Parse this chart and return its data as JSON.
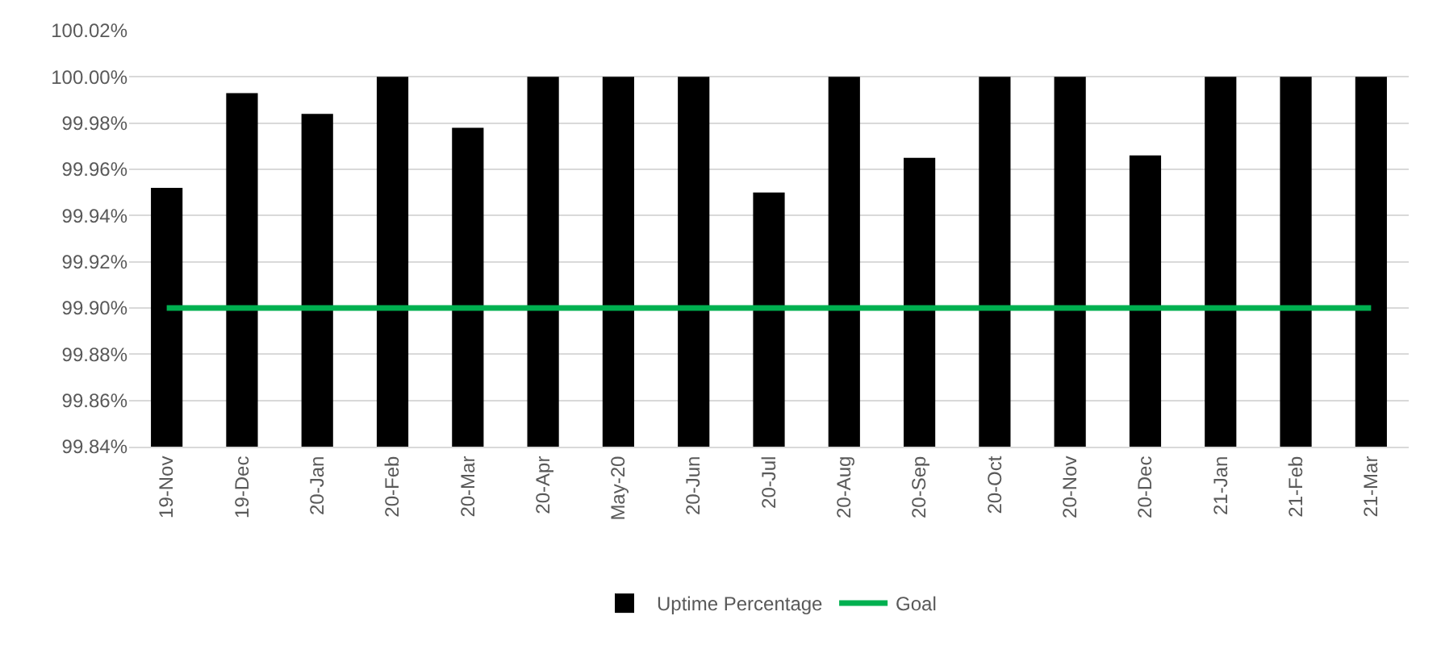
{
  "chart_data": {
    "type": "bar",
    "categories": [
      "19-Nov",
      "19-Dec",
      "20-Jan",
      "20-Feb",
      "20-Mar",
      "20-Apr",
      "May-20",
      "20-Jun",
      "20-Jul",
      "20-Aug",
      "20-Sep",
      "20-Oct",
      "20-Nov",
      "20-Dec",
      "21-Jan",
      "21-Feb",
      "21-Mar"
    ],
    "series": [
      {
        "name": "Uptime Percentage",
        "color": "#000000",
        "values": [
          99.952,
          99.993,
          99.984,
          100.0,
          99.978,
          100.0,
          100.0,
          100.0,
          99.95,
          100.0,
          99.965,
          100.0,
          100.0,
          99.966,
          100.0,
          100.0,
          100.0
        ]
      },
      {
        "name": "Goal",
        "type": "line",
        "color": "#00b050",
        "values": [
          99.9,
          99.9,
          99.9,
          99.9,
          99.9,
          99.9,
          99.9,
          99.9,
          99.9,
          99.9,
          99.9,
          99.9,
          99.9,
          99.9,
          99.9,
          99.9,
          99.9
        ]
      }
    ],
    "ylim": [
      99.84,
      100.02
    ],
    "yticks": [
      {
        "value": 99.84,
        "label": "99.84%"
      },
      {
        "value": 99.86,
        "label": "99.86%"
      },
      {
        "value": 99.88,
        "label": "99.88%"
      },
      {
        "value": 99.9,
        "label": "99.90%"
      },
      {
        "value": 99.92,
        "label": "99.92%"
      },
      {
        "value": 99.94,
        "label": "99.94%"
      },
      {
        "value": 99.96,
        "label": "99.96%"
      },
      {
        "value": 99.98,
        "label": "99.98%"
      },
      {
        "value": 100.0,
        "label": "100.00%"
      },
      {
        "value": 100.02,
        "label": "100.02%"
      }
    ],
    "grid": "y",
    "legend": "bottom",
    "marker": "none"
  }
}
